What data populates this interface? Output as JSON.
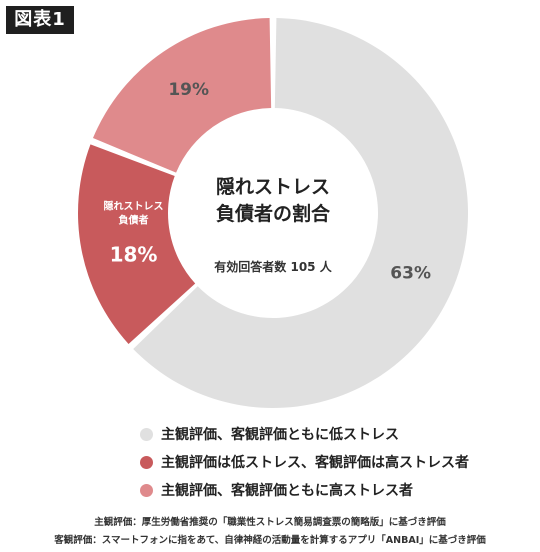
{
  "figure_label": "図表1",
  "chart_data": {
    "type": "pie",
    "donut": true,
    "title_lines": [
      "隠れストレス",
      "負債者の割合"
    ],
    "subtitle": "有効回答者数 105 人",
    "slices": [
      {
        "label": "主観評価、客観評価ともに低ストレス",
        "value": 63,
        "value_label": "63%",
        "color": "#e0e0e0"
      },
      {
        "label": "主観評価は低ストレス、客観評価は高ストレス者",
        "value": 18,
        "value_label": "18%",
        "slice_label_lines": [
          "隠れストレス",
          "負債者"
        ],
        "color": "#c85a5c"
      },
      {
        "label": "主観評価、客観評価ともに高ストレス者",
        "value": 19,
        "value_label": "19%",
        "color": "#df8a8c"
      }
    ]
  },
  "notes": [
    "主観評価：厚生労働省推奨の「職業性ストレス簡易調査票の簡略版」に基づき評価",
    "客観評価：スマートフォンに指をあて、自律神経の活動量を計算するアプリ「ANBAI」に基づき評価"
  ]
}
